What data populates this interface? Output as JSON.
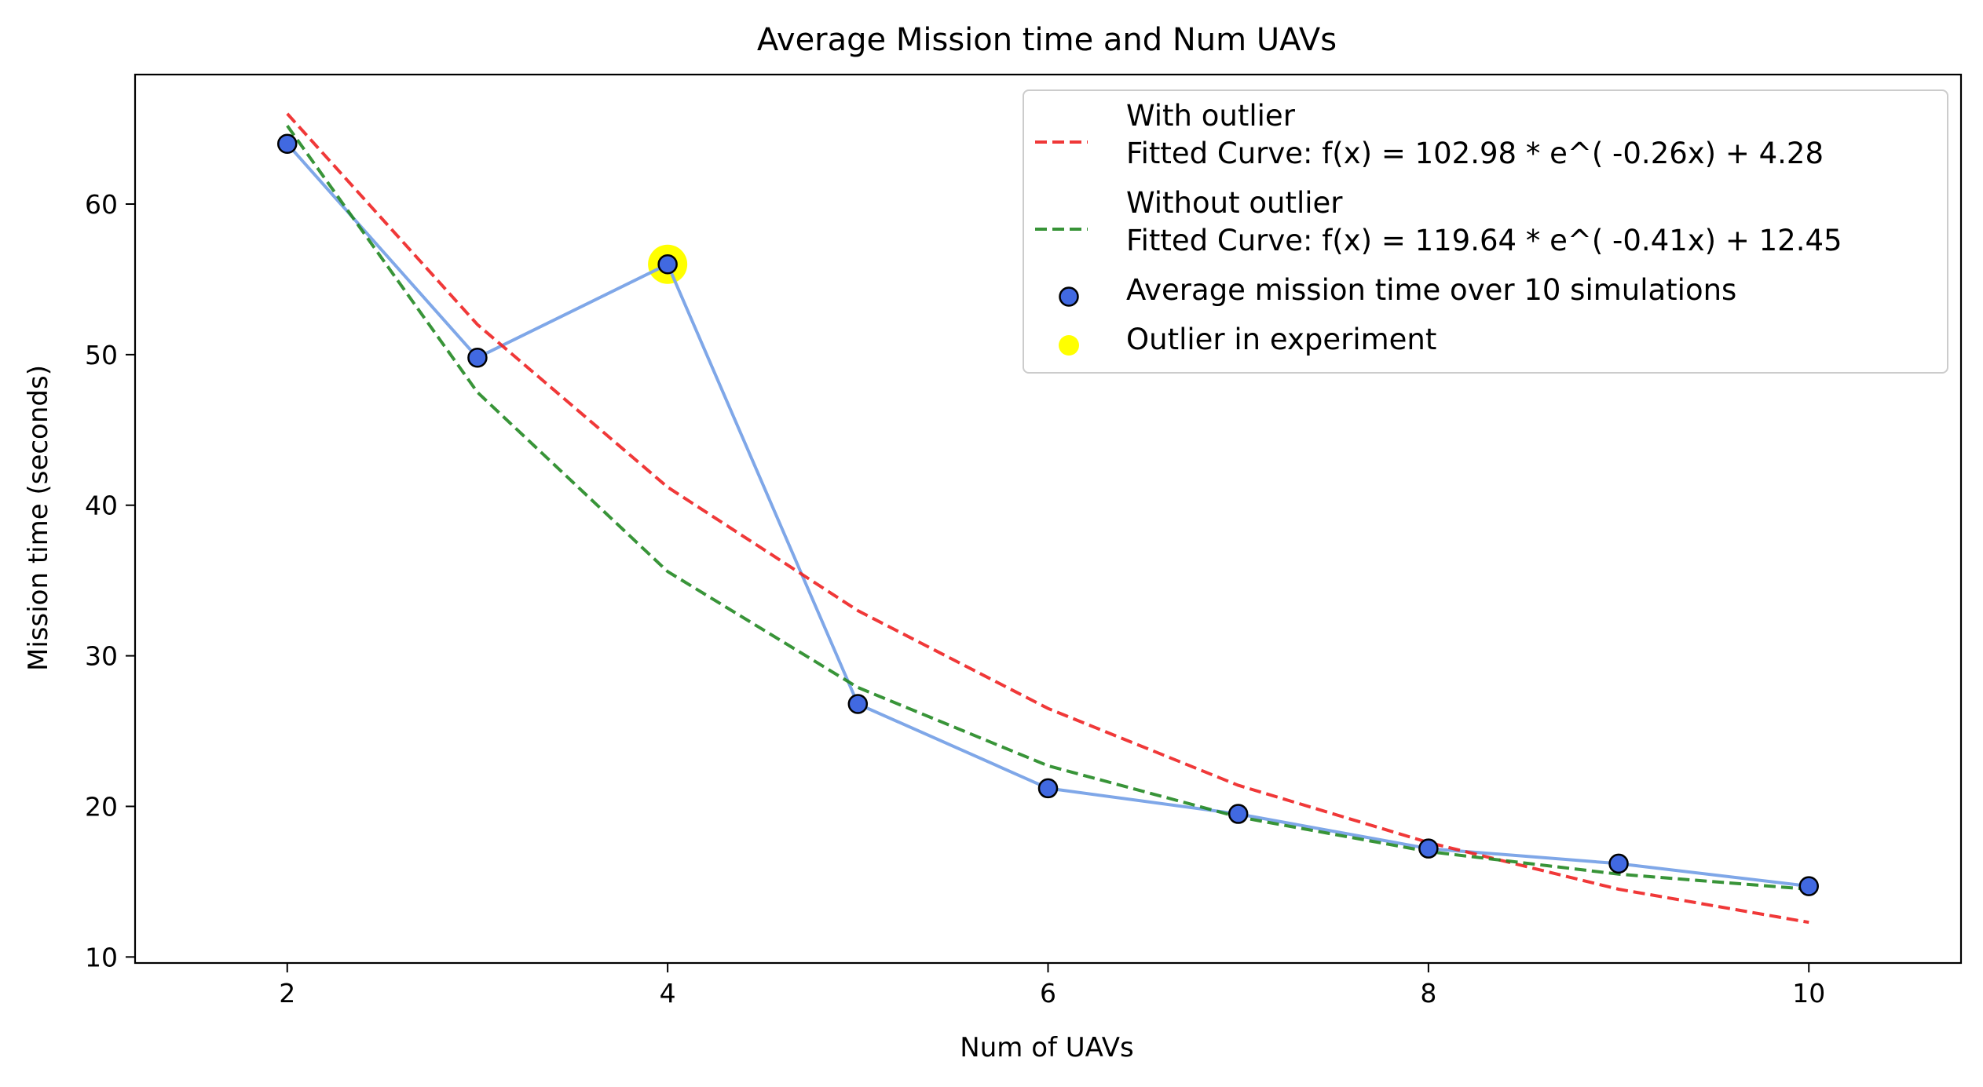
{
  "chart_data": {
    "type": "line",
    "title": "Average Mission time and Num UAVs",
    "xlabel": "Num of UAVs",
    "ylabel": "Mission time (seconds)",
    "xlim": [
      1.2,
      10.8
    ],
    "ylim": [
      9.6,
      68.6
    ],
    "xticks": [
      2,
      4,
      6,
      8,
      10
    ],
    "yticks": [
      10,
      20,
      30,
      40,
      50,
      60
    ],
    "grid": false,
    "legend_position": "top-right",
    "x": [
      2,
      3,
      4,
      5,
      6,
      7,
      8,
      9,
      10
    ],
    "series": [
      {
        "name": "With outlier\nFitted Curve: f(x) = 102.98 * e^( -0.26x) + 4.28",
        "kind": "fit-dashed",
        "color": "#ee2222",
        "values": [
          66.0,
          52.0,
          41.2,
          33.0,
          26.5,
          21.4,
          17.6,
          14.5,
          12.3
        ]
      },
      {
        "name": "Without outlier\nFitted Curve: f(x) = 119.64 * e^( -0.41x) + 12.45",
        "kind": "fit-dashed",
        "color": "#228822",
        "values": [
          65.2,
          47.5,
          35.6,
          27.9,
          22.7,
          19.3,
          17.0,
          15.5,
          14.5
        ]
      },
      {
        "name": "Average mission time over 10 simulations",
        "kind": "line-markers",
        "line_color": "#7fa7e8",
        "marker_color": "#4169e1",
        "values": [
          64.0,
          49.8,
          56.0,
          26.8,
          21.2,
          19.5,
          17.2,
          16.2,
          14.7
        ]
      },
      {
        "name": "Outlier in experiment",
        "kind": "highlight",
        "color": "#ffff00",
        "points": [
          {
            "x": 4,
            "y": 56.0
          }
        ]
      }
    ]
  }
}
